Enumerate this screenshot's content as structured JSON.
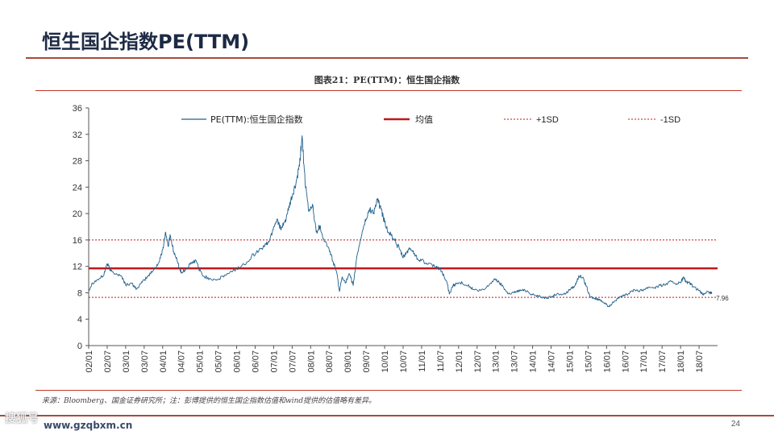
{
  "page": {
    "title": "恒生国企指数PE(TTM)",
    "page_number": "24",
    "watermark": "搜狐号",
    "watermark_url": "www.gzqbxm.cn"
  },
  "chart_caption": "图表21：PE(TTM)：恒生国企指数",
  "source_note": "来源：Bloomberg、国金证券研究所；注：彭博提供的恒生国企指数估值和wind提供的估值略有差异。",
  "colors": {
    "series": "#1f5f8b",
    "mean": "#c0181b",
    "sd": "#c0181b",
    "accent": "#a84a3e"
  },
  "chart_data": {
    "type": "line",
    "title": "PE(TTM)：恒生国企指数",
    "xlabel": "",
    "ylabel": "",
    "ylim": [
      0,
      36
    ],
    "yticks": [
      0,
      4,
      8,
      12,
      16,
      20,
      24,
      28,
      32,
      36
    ],
    "xlim": [
      2002.0,
      2019.0
    ],
    "xticks": [
      "02/01",
      "02/07",
      "03/01",
      "03/07",
      "04/01",
      "04/07",
      "05/01",
      "05/07",
      "06/01",
      "06/07",
      "07/01",
      "07/07",
      "08/01",
      "08/07",
      "09/01",
      "09/07",
      "10/01",
      "10/07",
      "11/01",
      "11/07",
      "12/01",
      "12/07",
      "13/01",
      "13/07",
      "14/01",
      "14/07",
      "15/01",
      "15/07",
      "16/01",
      "16/07",
      "17/01",
      "17/07",
      "18/01",
      "18/07"
    ],
    "legend": {
      "series": "PE(TTM):恒生国企指数",
      "mean": "均值",
      "plus_sd": "+1SD",
      "minus_sd": "-1SD"
    },
    "mean": 11.7,
    "plus_1sd": 16.0,
    "minus_1sd": 7.3,
    "last_value_label": "7.96",
    "series": [
      {
        "name": "PE(TTM):恒生国企指数",
        "points": [
          [
            2002.0,
            8.3
          ],
          [
            2002.1,
            9.5
          ],
          [
            2002.25,
            10.0
          ],
          [
            2002.4,
            10.6
          ],
          [
            2002.5,
            12.4
          ],
          [
            2002.6,
            11.3
          ],
          [
            2002.75,
            10.9
          ],
          [
            2002.9,
            10.4
          ],
          [
            2003.0,
            9.2
          ],
          [
            2003.15,
            9.4
          ],
          [
            2003.3,
            8.6
          ],
          [
            2003.45,
            9.6
          ],
          [
            2003.6,
            10.5
          ],
          [
            2003.75,
            11.4
          ],
          [
            2003.9,
            12.6
          ],
          [
            2004.0,
            14.5
          ],
          [
            2004.08,
            17.2
          ],
          [
            2004.15,
            15.0
          ],
          [
            2004.2,
            16.8
          ],
          [
            2004.3,
            14.2
          ],
          [
            2004.4,
            12.7
          ],
          [
            2004.5,
            11.0
          ],
          [
            2004.6,
            11.4
          ],
          [
            2004.75,
            12.3
          ],
          [
            2004.9,
            12.9
          ],
          [
            2005.0,
            11.4
          ],
          [
            2005.1,
            10.5
          ],
          [
            2005.3,
            10.1
          ],
          [
            2005.5,
            10.0
          ],
          [
            2005.7,
            10.7
          ],
          [
            2005.9,
            11.3
          ],
          [
            2006.0,
            11.6
          ],
          [
            2006.2,
            12.3
          ],
          [
            2006.4,
            13.5
          ],
          [
            2006.6,
            14.4
          ],
          [
            2006.8,
            15.3
          ],
          [
            2006.9,
            16.1
          ],
          [
            2007.0,
            18.0
          ],
          [
            2007.1,
            19.2
          ],
          [
            2007.2,
            17.5
          ],
          [
            2007.3,
            18.7
          ],
          [
            2007.4,
            20.5
          ],
          [
            2007.5,
            22.6
          ],
          [
            2007.6,
            24.4
          ],
          [
            2007.7,
            27.2
          ],
          [
            2007.77,
            31.8
          ],
          [
            2007.85,
            24.6
          ],
          [
            2007.95,
            20.3
          ],
          [
            2008.05,
            21.4
          ],
          [
            2008.15,
            17.2
          ],
          [
            2008.25,
            18.1
          ],
          [
            2008.35,
            16.2
          ],
          [
            2008.5,
            14.6
          ],
          [
            2008.6,
            12.8
          ],
          [
            2008.7,
            11.2
          ],
          [
            2008.78,
            8.2
          ],
          [
            2008.85,
            10.4
          ],
          [
            2008.95,
            9.6
          ],
          [
            2009.05,
            10.8
          ],
          [
            2009.15,
            9.1
          ],
          [
            2009.25,
            13.5
          ],
          [
            2009.4,
            17.4
          ],
          [
            2009.5,
            19.2
          ],
          [
            2009.6,
            20.7
          ],
          [
            2009.7,
            20.1
          ],
          [
            2009.8,
            22.1
          ],
          [
            2009.9,
            20.7
          ],
          [
            2010.0,
            18.7
          ],
          [
            2010.1,
            17.2
          ],
          [
            2010.25,
            16.2
          ],
          [
            2010.4,
            14.6
          ],
          [
            2010.5,
            13.3
          ],
          [
            2010.6,
            14.2
          ],
          [
            2010.7,
            14.7
          ],
          [
            2010.8,
            14.0
          ],
          [
            2010.9,
            13.1
          ],
          [
            2011.0,
            13.0
          ],
          [
            2011.15,
            12.3
          ],
          [
            2011.35,
            12.0
          ],
          [
            2011.5,
            11.6
          ],
          [
            2011.6,
            10.6
          ],
          [
            2011.7,
            9.2
          ],
          [
            2011.75,
            7.8
          ],
          [
            2011.85,
            9.1
          ],
          [
            2011.95,
            9.4
          ],
          [
            2012.1,
            9.5
          ],
          [
            2012.25,
            9.1
          ],
          [
            2012.4,
            8.5
          ],
          [
            2012.55,
            8.3
          ],
          [
            2012.7,
            8.5
          ],
          [
            2012.85,
            9.4
          ],
          [
            2013.0,
            10.1
          ],
          [
            2013.1,
            9.5
          ],
          [
            2013.2,
            9.0
          ],
          [
            2013.3,
            8.1
          ],
          [
            2013.4,
            7.8
          ],
          [
            2013.55,
            8.2
          ],
          [
            2013.7,
            8.4
          ],
          [
            2013.85,
            8.3
          ],
          [
            2014.0,
            7.7
          ],
          [
            2014.15,
            7.5
          ],
          [
            2014.3,
            7.3
          ],
          [
            2014.5,
            7.3
          ],
          [
            2014.6,
            7.7
          ],
          [
            2014.75,
            7.8
          ],
          [
            2014.9,
            7.9
          ],
          [
            2015.0,
            8.5
          ],
          [
            2015.15,
            9.1
          ],
          [
            2015.25,
            10.6
          ],
          [
            2015.35,
            10.3
          ],
          [
            2015.45,
            9.0
          ],
          [
            2015.55,
            7.4
          ],
          [
            2015.65,
            7.2
          ],
          [
            2015.75,
            7.0
          ],
          [
            2015.85,
            6.9
          ],
          [
            2015.95,
            6.4
          ],
          [
            2016.05,
            5.9
          ],
          [
            2016.15,
            6.4
          ],
          [
            2016.3,
            7.1
          ],
          [
            2016.45,
            7.5
          ],
          [
            2016.6,
            7.9
          ],
          [
            2016.75,
            8.5
          ],
          [
            2016.9,
            8.3
          ],
          [
            2017.0,
            8.5
          ],
          [
            2017.15,
            8.9
          ],
          [
            2017.3,
            8.8
          ],
          [
            2017.45,
            9.1
          ],
          [
            2017.6,
            9.3
          ],
          [
            2017.75,
            9.7
          ],
          [
            2017.9,
            9.4
          ],
          [
            2018.0,
            9.5
          ],
          [
            2018.08,
            10.4
          ],
          [
            2018.15,
            9.6
          ],
          [
            2018.25,
            9.4
          ],
          [
            2018.35,
            8.9
          ],
          [
            2018.5,
            8.3
          ],
          [
            2018.6,
            7.7
          ],
          [
            2018.7,
            8.1
          ],
          [
            2018.8,
            8.0
          ],
          [
            2018.85,
            7.96
          ]
        ]
      }
    ]
  }
}
